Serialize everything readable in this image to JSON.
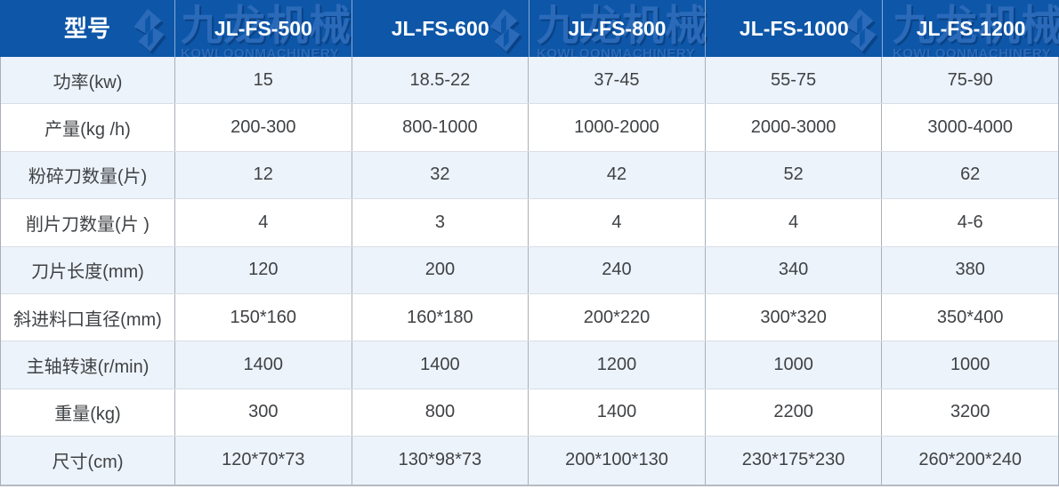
{
  "chart_data": {
    "type": "table",
    "header_row": [
      "型号",
      "JL-FS-500",
      "JL-FS-600",
      "JL-FS-800",
      "JL-FS-1000",
      "JL-FS-1200"
    ],
    "rows": [
      {
        "label": "功率(kw)",
        "values": [
          "15",
          "18.5-22",
          "37-45",
          "55-75",
          "75-90"
        ]
      },
      {
        "label": "产量(kg /h)",
        "values": [
          "200-300",
          "800-1000",
          "1000-2000",
          "2000-3000",
          "3000-4000"
        ]
      },
      {
        "label": "粉碎刀数量(片)",
        "values": [
          "12",
          "32",
          "42",
          "52",
          "62"
        ]
      },
      {
        "label": "削片刀数量(片 )",
        "values": [
          "4",
          "3",
          "4",
          "4",
          "4-6"
        ]
      },
      {
        "label": "刀片长度(mm)",
        "values": [
          "120",
          "200",
          "240",
          "340",
          "380"
        ]
      },
      {
        "label": "斜进料口直径(mm)",
        "values": [
          "150*160",
          "160*180",
          "200*220",
          "300*320",
          "350*400"
        ]
      },
      {
        "label": "主轴转速(r/min)",
        "values": [
          "1400",
          "1400",
          "1200",
          "1000",
          "1000"
        ]
      },
      {
        "label": "重量(kg)",
        "values": [
          "300",
          "800",
          "1400",
          "2200",
          "3200"
        ]
      },
      {
        "label": "尺寸(cm)",
        "values": [
          "120*70*73",
          "130*98*73",
          "200*100*130",
          "230*175*230",
          "260*200*240"
        ]
      }
    ]
  },
  "watermark": {
    "cn": "九龙机械",
    "en": "KOWLOONMACHINERY"
  },
  "colors": {
    "header_background": "#0d56a8",
    "watermark_light": "#2d6cbb",
    "watermark_dark": "#0a4184",
    "row_alternate": "#edf3fa",
    "row_default": "#ffffff",
    "grid_line_vertical": "#a9b0ba",
    "grid_line_horizontal": "#d9dee4",
    "header_text": "#ffffff",
    "body_text": "#3f4245"
  }
}
